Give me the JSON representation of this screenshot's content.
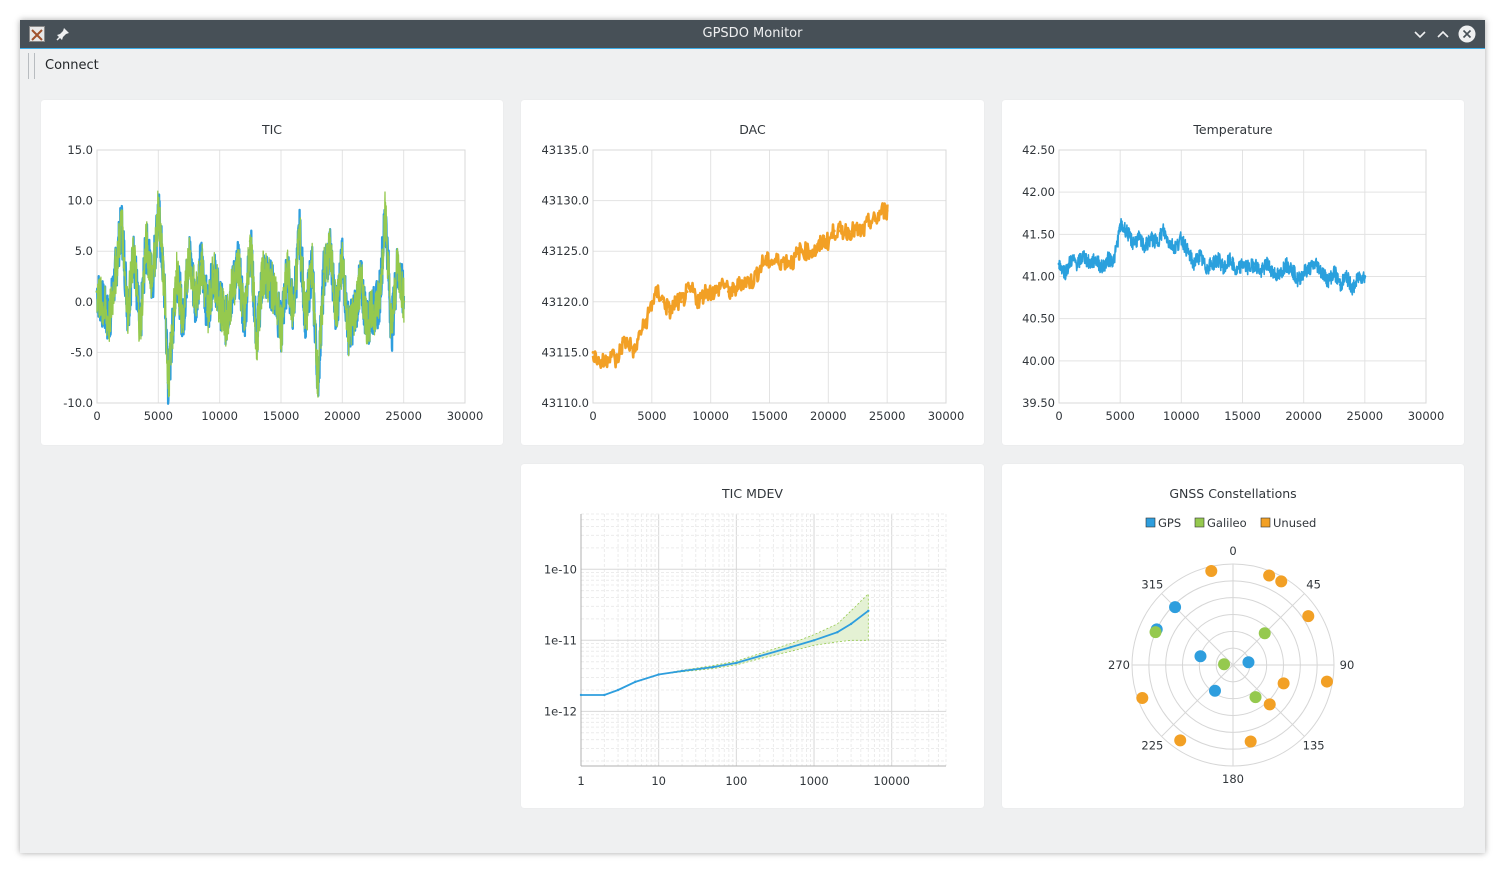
{
  "window": {
    "title": "GPSDO Monitor",
    "app_icon": "x-app-icon",
    "pin_icon": "pin-icon",
    "controls": [
      "minimize-icon",
      "maximize-icon",
      "close-icon"
    ]
  },
  "toolbar": {
    "connect_label": "Connect"
  },
  "colors": {
    "gps": "#2e9ede",
    "galileo": "#95c94e",
    "unused": "#f2a025",
    "dac": "#f2a025",
    "temperature": "#2aa0dd",
    "accent": "#3daee9"
  },
  "chart_data": [
    {
      "id": "tic",
      "type": "line",
      "title": "TIC",
      "xlabel": "",
      "ylabel": "",
      "xlim": [
        0,
        30000
      ],
      "ylim": [
        -10.0,
        15.0
      ],
      "x_ticks": [
        "0",
        "5000",
        "10000",
        "15000",
        "20000",
        "25000",
        "30000"
      ],
      "y_ticks": [
        "15.0",
        "10.0",
        "5.0",
        "0.0",
        "-5.0",
        "-10.0"
      ],
      "grid": true,
      "series": [
        {
          "color": "#2e9ede",
          "x": [
            0,
            1000,
            1500,
            2000,
            2500,
            3000,
            3500,
            4000,
            4500,
            5000,
            5500,
            5800,
            6000,
            6500,
            7000,
            7500,
            8000,
            8500,
            9000,
            9500,
            10000,
            10500,
            11000,
            11500,
            12000,
            12500,
            13000,
            13500,
            14000,
            14500,
            15000,
            15500,
            16000,
            16500,
            17000,
            17500,
            18000,
            18500,
            19000,
            19500,
            20000,
            20500,
            21000,
            21500,
            22000,
            22500,
            23000,
            23500,
            24000,
            24500,
            25000
          ],
          "y": [
            1,
            -2,
            3,
            8,
            -1,
            5,
            -3,
            6,
            2,
            9,
            1,
            -8,
            -5,
            3,
            -2,
            5,
            0,
            4,
            -1,
            3,
            0,
            -2,
            1,
            4,
            -2,
            6,
            -4,
            3,
            2,
            1,
            -3,
            3,
            -1,
            7,
            -2,
            4,
            -8,
            3,
            5,
            -1,
            4,
            -3,
            -1,
            2,
            -2,
            -1,
            0,
            9,
            -3,
            4,
            0
          ]
        },
        {
          "color": "#95c94e",
          "x": [
            0,
            1000,
            1500,
            2000,
            2500,
            3000,
            3500,
            4000,
            4500,
            5000,
            5500,
            5800,
            6000,
            6500,
            7000,
            7500,
            8000,
            8500,
            9000,
            9500,
            10000,
            10500,
            11000,
            11500,
            12000,
            12500,
            13000,
            13500,
            14000,
            14500,
            15000,
            15500,
            16000,
            16500,
            17000,
            17500,
            18000,
            18500,
            19000,
            19500,
            20000,
            20500,
            21000,
            21500,
            22000,
            22500,
            23000,
            23500,
            24000,
            24500,
            25000
          ],
          "y": [
            1,
            -2,
            3,
            8,
            -1,
            5,
            -3,
            6,
            2,
            9,
            1,
            -8,
            -5,
            3,
            -2,
            5,
            0,
            4,
            -1,
            3,
            0,
            -2,
            1,
            4,
            -2,
            6,
            -4,
            3,
            2,
            1,
            -3,
            3,
            -1,
            7,
            -2,
            4,
            -8,
            3,
            5,
            -1,
            4,
            -3,
            -1,
            2,
            -2,
            -1,
            0,
            9,
            -3,
            4,
            0
          ]
        }
      ]
    },
    {
      "id": "dac",
      "type": "line",
      "title": "DAC",
      "xlabel": "",
      "ylabel": "",
      "xlim": [
        0,
        30000
      ],
      "ylim": [
        43110.0,
        43135.0
      ],
      "x_ticks": [
        "0",
        "5000",
        "10000",
        "15000",
        "20000",
        "25000",
        "30000"
      ],
      "y_ticks": [
        "43135.0",
        "43130.0",
        "43125.0",
        "43120.0",
        "43115.0",
        "43110.0"
      ],
      "grid": true,
      "series": [
        {
          "color": "#f2a025",
          "x": [
            0,
            500,
            1000,
            1500,
            2000,
            2500,
            3000,
            3500,
            4000,
            4500,
            5000,
            5500,
            6000,
            6500,
            7000,
            7500,
            8000,
            8500,
            9000,
            9500,
            10000,
            10500,
            11000,
            11500,
            12000,
            12500,
            13000,
            13500,
            14000,
            14500,
            15000,
            15500,
            16000,
            16500,
            17000,
            17500,
            18000,
            18500,
            19000,
            19500,
            20000,
            20500,
            21000,
            21500,
            22000,
            22500,
            23000,
            23500,
            24000,
            24500,
            25000
          ],
          "y": [
            43115,
            43114,
            43114,
            43115,
            43114,
            43116,
            43116,
            43115,
            43117,
            43118,
            43120,
            43121,
            43120,
            43119,
            43120,
            43120,
            43121,
            43121,
            43120,
            43121,
            43121,
            43121,
            43122,
            43121,
            43121,
            43122,
            43122,
            43122,
            43123,
            43124,
            43124,
            43124,
            43124,
            43124,
            43124,
            43125,
            43125,
            43125,
            43125,
            43126,
            43126,
            43127,
            43127,
            43127,
            43127,
            43127,
            43127,
            43128,
            43128,
            43129,
            43129
          ]
        }
      ]
    },
    {
      "id": "temperature",
      "type": "line",
      "title": "Temperature",
      "xlabel": "",
      "ylabel": "",
      "xlim": [
        0,
        30000
      ],
      "ylim": [
        39.5,
        42.5
      ],
      "x_ticks": [
        "0",
        "5000",
        "10000",
        "15000",
        "20000",
        "25000",
        "30000"
      ],
      "y_ticks": [
        "42.50",
        "42.00",
        "41.50",
        "41.00",
        "40.50",
        "40.00",
        "39.50"
      ],
      "grid": true,
      "series": [
        {
          "color": "#2aa0dd",
          "x": [
            0,
            500,
            1000,
            1500,
            2000,
            2500,
            3000,
            3500,
            4000,
            4500,
            5000,
            5500,
            6000,
            6500,
            7000,
            7500,
            8000,
            8500,
            9000,
            9500,
            10000,
            10500,
            11000,
            11500,
            12000,
            12500,
            13000,
            13500,
            14000,
            14500,
            15000,
            15500,
            16000,
            16500,
            17000,
            17500,
            18000,
            18500,
            19000,
            19500,
            20000,
            20500,
            21000,
            21500,
            22000,
            22500,
            23000,
            23500,
            24000,
            24500,
            25000
          ],
          "y": [
            41.15,
            41.05,
            41.2,
            41.15,
            41.25,
            41.15,
            41.2,
            41.1,
            41.2,
            41.2,
            41.6,
            41.55,
            41.4,
            41.45,
            41.35,
            41.45,
            41.4,
            41.55,
            41.4,
            41.35,
            41.45,
            41.3,
            41.15,
            41.25,
            41.1,
            41.15,
            41.2,
            41.1,
            41.2,
            41.05,
            41.15,
            41.1,
            41.15,
            41.05,
            41.15,
            41.05,
            41.0,
            41.15,
            41.1,
            40.95,
            41.05,
            41.1,
            41.15,
            41.05,
            40.95,
            41.05,
            40.9,
            41.0,
            40.85,
            41.0,
            41.0
          ]
        }
      ]
    },
    {
      "id": "tic-mdev",
      "type": "line",
      "title": "TIC MDEV",
      "xlabel": "",
      "ylabel": "",
      "x_scale": "log",
      "y_scale": "log",
      "xlim": [
        1,
        50000
      ],
      "ylim": [
        1.7e-13,
        6e-10
      ],
      "x_ticks": [
        "1",
        "10",
        "100",
        "1000",
        "10000"
      ],
      "y_ticks": [
        "1e-10",
        "1e-11",
        "1e-12"
      ],
      "grid": true,
      "series": [
        {
          "color": "#2e9ede",
          "x": [
            1,
            2,
            3,
            5,
            10,
            20,
            50,
            100,
            200,
            500,
            1000,
            2000,
            3000,
            5000
          ],
          "y": [
            1.7e-12,
            1.7e-12,
            2e-12,
            2.6e-12,
            3.3e-12,
            3.7e-12,
            4.2e-12,
            4.8e-12,
            6e-12,
            8e-12,
            1e-11,
            1.3e-11,
            1.7e-11,
            2.6e-11
          ],
          "error_low": [
            1.7e-12,
            1.7e-12,
            2e-12,
            2.6e-12,
            3.3e-12,
            3.6e-12,
            4e-12,
            4.5e-12,
            5.5e-12,
            7e-12,
            8.5e-12,
            9.5e-12,
            1e-11,
            1e-11
          ],
          "error_high": [
            1.7e-12,
            1.7e-12,
            2e-12,
            2.6e-12,
            3.3e-12,
            3.8e-12,
            4.4e-12,
            5.1e-12,
            6.5e-12,
            9e-12,
            1.2e-11,
            1.7e-11,
            2.6e-11,
            4.5e-11
          ]
        }
      ]
    },
    {
      "id": "gnss",
      "type": "scatter",
      "title": "GNSS Constellations",
      "legend_position": "top",
      "angular_ticks": [
        "0",
        "45",
        "90",
        "135",
        "180",
        "225",
        "270",
        "315"
      ],
      "radial_max": 90,
      "series": [
        {
          "name": "GPS",
          "color": "#2e9ede",
          "points": [
            {
              "az": 315,
              "el": 17
            },
            {
              "az": 295,
              "el": 15
            },
            {
              "az": 285,
              "el": 60
            },
            {
              "az": 80,
              "el": 76
            },
            {
              "az": 215,
              "el": 62
            }
          ]
        },
        {
          "name": "Galileo",
          "color": "#95c94e",
          "points": [
            {
              "az": 293,
              "el": 15
            },
            {
              "az": 45,
              "el": 50
            },
            {
              "az": 275,
              "el": 82
            },
            {
              "az": 145,
              "el": 55
            }
          ]
        },
        {
          "name": "Unused",
          "color": "#f2a025",
          "points": [
            {
              "az": 347,
              "el": 4
            },
            {
              "az": 22,
              "el": 4
            },
            {
              "az": 30,
              "el": 4
            },
            {
              "az": 57,
              "el": 10
            },
            {
              "az": 100,
              "el": 5
            },
            {
              "az": 110,
              "el": 42
            },
            {
              "az": 137,
              "el": 42
            },
            {
              "az": 167,
              "el": 20
            },
            {
              "az": 215,
              "el": 8
            },
            {
              "az": 250,
              "el": 4
            }
          ]
        }
      ]
    }
  ]
}
